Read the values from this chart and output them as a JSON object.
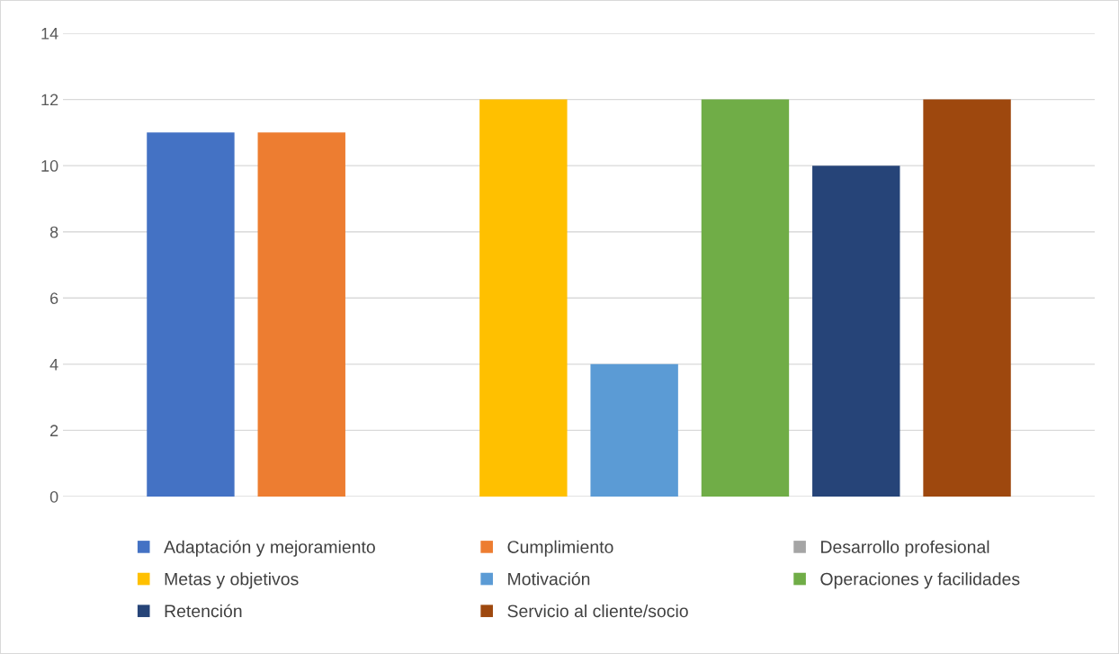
{
  "chart_data": {
    "type": "bar",
    "categories": [
      null
    ],
    "series": [
      {
        "name": "Adaptación y mejoramiento",
        "color": "#4472c4",
        "values": [
          11
        ]
      },
      {
        "name": "Cumplimiento",
        "color": "#ed7d31",
        "values": [
          11
        ]
      },
      {
        "name": "Desarrollo profesional",
        "color": "#a5a5a5",
        "values": [
          0
        ]
      },
      {
        "name": "Metas y objetivos",
        "color": "#ffc000",
        "values": [
          12
        ]
      },
      {
        "name": "Motivación",
        "color": "#5b9bd5",
        "values": [
          4
        ]
      },
      {
        "name": "Operaciones y facilidades",
        "color": "#70ad47",
        "values": [
          12
        ]
      },
      {
        "name": "Retención",
        "color": "#264478",
        "values": [
          10
        ]
      },
      {
        "name": "Servicio al cliente/socio",
        "color": "#9e480e",
        "values": [
          12
        ]
      }
    ],
    "ylim": [
      0,
      14
    ],
    "yticks": [
      0,
      2,
      4,
      6,
      8,
      10,
      12,
      14
    ],
    "grid": "y",
    "legend": "bottom",
    "tick_labels": "y"
  }
}
